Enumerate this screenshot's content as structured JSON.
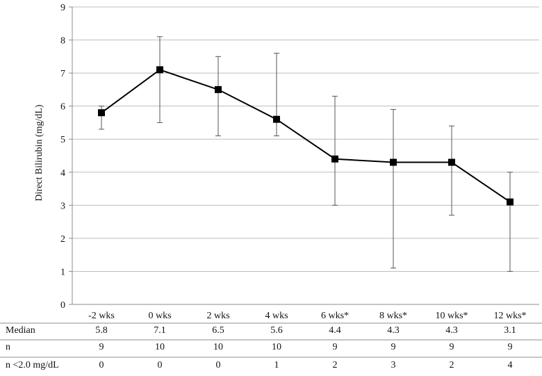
{
  "chart_data": {
    "type": "line",
    "title": "",
    "xlabel": "",
    "ylabel": "Direct Bilirubin (mg/dL)",
    "ylim": [
      0,
      9
    ],
    "yticks": [
      0,
      1,
      2,
      3,
      4,
      5,
      6,
      7,
      8,
      9
    ],
    "grid": true,
    "categories": [
      "-2 wks",
      "0 wks",
      "2 wks",
      "4 wks",
      "6 wks*",
      "8 wks*",
      "10 wks*",
      "12 wks*"
    ],
    "series": [
      {
        "name": "Median",
        "values": [
          5.8,
          7.1,
          6.5,
          5.6,
          4.4,
          4.3,
          4.3,
          3.1
        ],
        "error_low": [
          5.3,
          5.5,
          5.1,
          5.1,
          3.0,
          1.1,
          2.7,
          1.0
        ],
        "error_high": [
          6.0,
          8.1,
          7.5,
          7.6,
          6.3,
          5.9,
          5.4,
          4.0
        ]
      }
    ],
    "table": {
      "rows": [
        {
          "label": "Median",
          "values": [
            "5.8",
            "7.1",
            "6.5",
            "5.6",
            "4.4",
            "4.3",
            "4.3",
            "3.1"
          ]
        },
        {
          "label": "n",
          "values": [
            "9",
            "10",
            "10",
            "10",
            "9",
            "9",
            "9",
            "9"
          ]
        },
        {
          "label": "n <2.0 mg/dL",
          "values": [
            "0",
            "0",
            "0",
            "1",
            "2",
            "3",
            "2",
            "4"
          ]
        }
      ]
    },
    "colors": {
      "line": "#000000",
      "grid": "#bdbdbd",
      "axis": "#8c8c8c",
      "error": "#555555"
    }
  }
}
